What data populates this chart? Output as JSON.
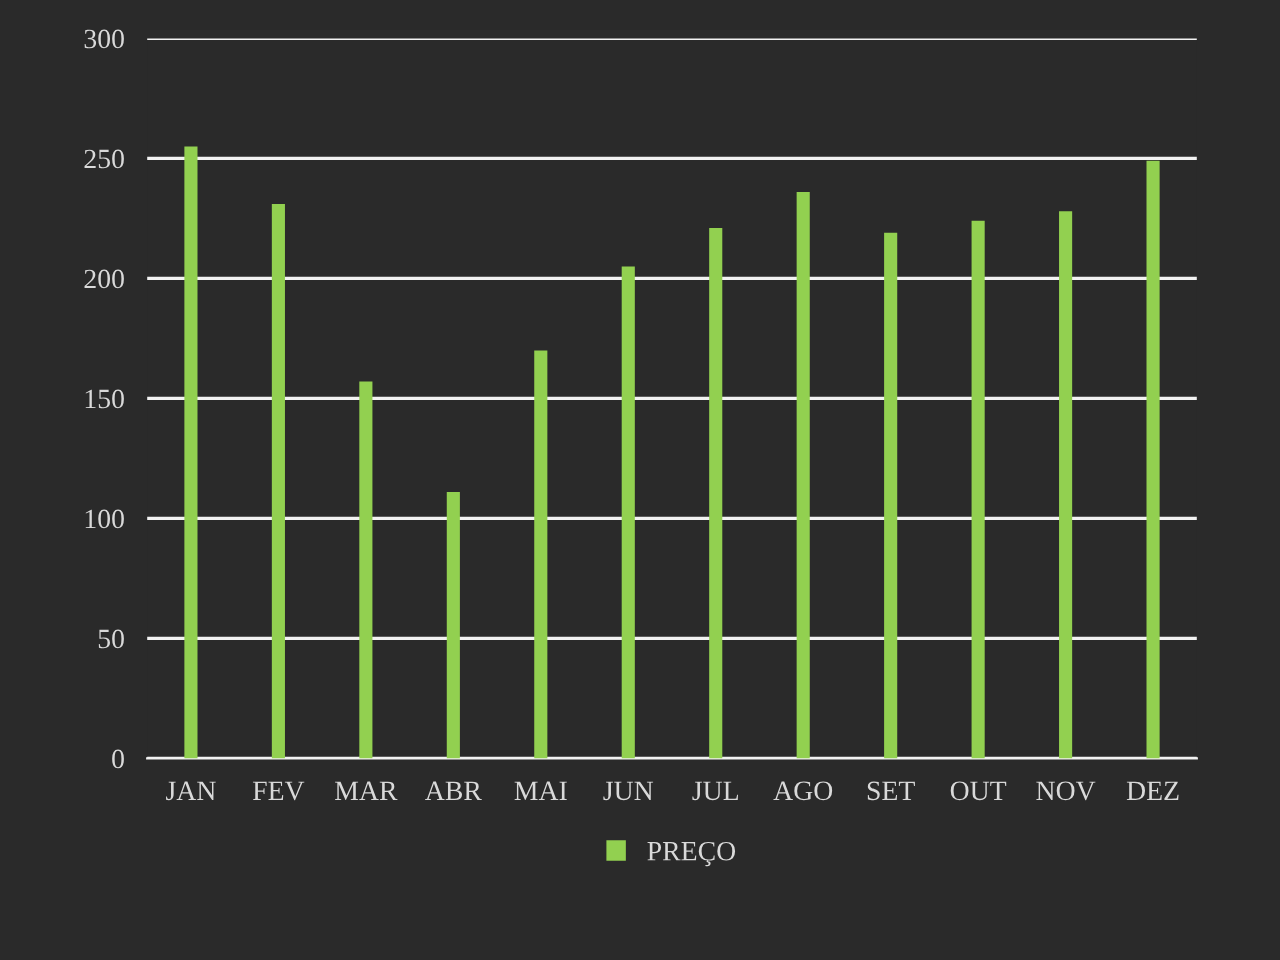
{
  "chart_data": {
    "type": "bar",
    "categories": [
      "JAN",
      "FEV",
      "MAR",
      "ABR",
      "MAI",
      "JUN",
      "JUL",
      "AGO",
      "SET",
      "OUT",
      "NOV",
      "DEZ"
    ],
    "series": [
      {
        "name": "PREÇO",
        "color": "#92d050",
        "values": [
          255,
          231,
          157,
          111,
          170,
          205,
          221,
          236,
          219,
          224,
          228,
          249
        ]
      }
    ],
    "ylim": [
      0,
      300
    ],
    "yticks": [
      0,
      50,
      100,
      150,
      200,
      250,
      300
    ],
    "grid": "y",
    "legend": "bottom"
  }
}
